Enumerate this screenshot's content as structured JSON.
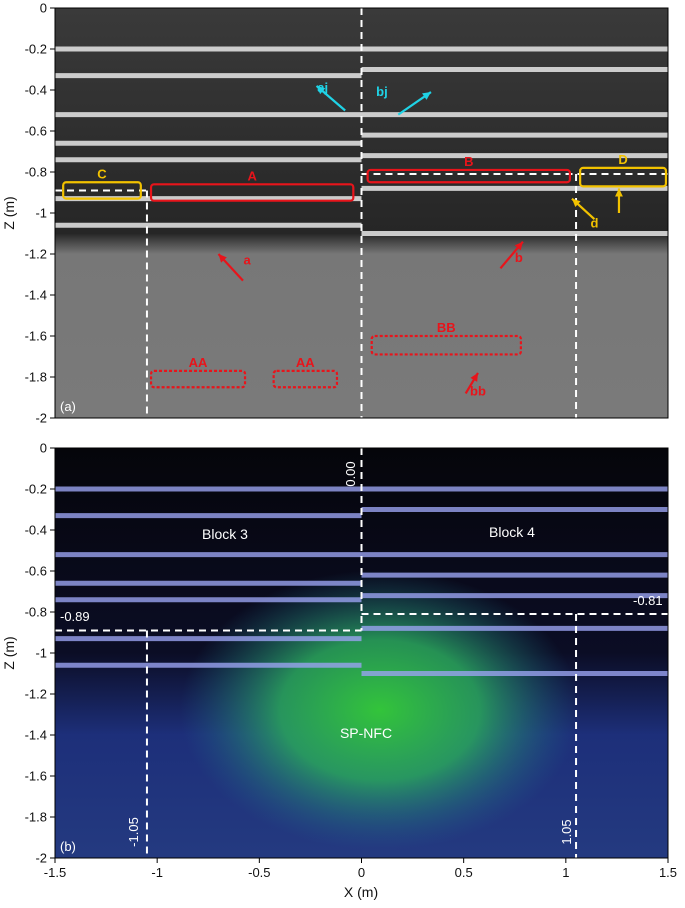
{
  "chart_data": [
    {
      "type": "heatmap",
      "panel_label": "(a)",
      "ylabel": "Z (m)",
      "xlim": [
        -1.5,
        1.5
      ],
      "ylim": [
        -2,
        0
      ],
      "yticks": [
        "0",
        "-0.2",
        "-0.4",
        "-0.6",
        "-0.8",
        "-1",
        "-1.2",
        "-1.4",
        "-1.6",
        "-1.8",
        "-2"
      ],
      "colormap": "grayscale",
      "reflector_bands": [
        {
          "x0": -1.5,
          "x1": 0.0,
          "z": -0.2
        },
        {
          "x0": -1.5,
          "x1": 0.0,
          "z": -0.33
        },
        {
          "x0": -1.5,
          "x1": 0.0,
          "z": -0.52
        },
        {
          "x0": -1.5,
          "x1": 0.0,
          "z": -0.66
        },
        {
          "x0": -1.5,
          "x1": 0.0,
          "z": -0.74
        },
        {
          "x0": -1.5,
          "x1": 0.0,
          "z": -0.93
        },
        {
          "x0": -1.5,
          "x1": 0.0,
          "z": -1.06
        },
        {
          "x0": 0.0,
          "x1": 1.5,
          "z": -0.2
        },
        {
          "x0": 0.0,
          "x1": 1.5,
          "z": -0.3
        },
        {
          "x0": 0.0,
          "x1": 1.5,
          "z": -0.52
        },
        {
          "x0": 0.0,
          "x1": 1.5,
          "z": -0.62
        },
        {
          "x0": 0.0,
          "x1": 1.5,
          "z": -0.72
        },
        {
          "x0": 0.0,
          "x1": 1.5,
          "z": -0.88
        },
        {
          "x0": 0.0,
          "x1": 1.5,
          "z": -1.1
        }
      ],
      "dashed_lines": [
        {
          "x0": 0.0,
          "z0": 0.0,
          "x1": 0.0,
          "z1": -2.0
        },
        {
          "x0": -1.05,
          "z0": -0.89,
          "x1": -1.05,
          "z1": -2.0
        },
        {
          "x0": 1.05,
          "z0": -0.81,
          "x1": 1.05,
          "z1": -2.0
        },
        {
          "x0": -1.5,
          "z0": -0.89,
          "x1": -1.05,
          "z1": -0.89
        },
        {
          "x0": 0.0,
          "z0": -0.81,
          "x1": 1.5,
          "z1": -0.81
        }
      ],
      "boxes": [
        {
          "label": "C",
          "x0": -1.46,
          "x1": -1.08,
          "z0": -0.85,
          "z1": -0.93,
          "color": "#f2c200",
          "style": "solid"
        },
        {
          "label": "A",
          "x0": -1.03,
          "x1": -0.04,
          "z0": -0.86,
          "z1": -0.94,
          "color": "#e8141b",
          "style": "solid"
        },
        {
          "label": "B",
          "x0": 0.03,
          "x1": 1.02,
          "z0": -0.79,
          "z1": -0.85,
          "color": "#e8141b",
          "style": "solid"
        },
        {
          "label": "D",
          "x0": 1.07,
          "x1": 1.49,
          "z0": -0.78,
          "z1": -0.87,
          "color": "#f2c200",
          "style": "solid"
        },
        {
          "label": "AA",
          "x0": -1.03,
          "x1": -0.57,
          "z0": -1.77,
          "z1": -1.85,
          "color": "#e8141b",
          "style": "dashed"
        },
        {
          "label": "AA",
          "x0": -0.43,
          "x1": -0.12,
          "z0": -1.77,
          "z1": -1.85,
          "color": "#e8141b",
          "style": "dashed"
        },
        {
          "label": "BB",
          "x0": 0.05,
          "x1": 0.78,
          "z0": -1.6,
          "z1": -1.69,
          "color": "#e8141b",
          "style": "dashed"
        }
      ],
      "arrows": [
        {
          "label": "aj",
          "color": "#1fd3e6",
          "x0": -0.08,
          "z0": -0.5,
          "x1": -0.22,
          "z1": -0.38
        },
        {
          "label": "bj",
          "color": "#1fd3e6",
          "x0": 0.18,
          "z0": -0.52,
          "x1": 0.34,
          "z1": -0.41
        },
        {
          "label": "a",
          "color": "#e8141b",
          "x0": -0.58,
          "z0": -1.33,
          "x1": -0.7,
          "z1": -1.2
        },
        {
          "label": "b",
          "color": "#e8141b",
          "x0": 0.68,
          "z0": -1.27,
          "x1": 0.79,
          "z1": -1.14
        },
        {
          "label": "d",
          "color": "#f2c200",
          "x0": 1.14,
          "z0": -1.03,
          "x1": 1.03,
          "z1": -0.93
        },
        {
          "label": "",
          "color": "#f2c200",
          "x0": 1.26,
          "z0": -1.0,
          "x1": 1.26,
          "z1": -0.88
        },
        {
          "label": "bb",
          "color": "#e8141b",
          "x0": 0.51,
          "z0": -1.88,
          "x1": 0.57,
          "z1": -1.78
        }
      ],
      "arrow_labels": [
        {
          "text": "aj",
          "x": -0.19,
          "z": -0.41,
          "color": "#1fd3e6"
        },
        {
          "text": "bj",
          "x": 0.1,
          "z": -0.43,
          "color": "#1fd3e6"
        },
        {
          "text": "a",
          "x": -0.56,
          "z": -1.25,
          "color": "#e8141b"
        },
        {
          "text": "b",
          "x": 0.77,
          "z": -1.24,
          "color": "#e8141b"
        },
        {
          "text": "d",
          "x": 1.14,
          "z": -1.07,
          "color": "#f2c200"
        },
        {
          "text": "bb",
          "x": 0.57,
          "z": -1.89,
          "color": "#e8141b"
        }
      ]
    },
    {
      "type": "heatmap",
      "panel_label": "(b)",
      "xlabel": "X (m)",
      "ylabel": "Z (m)",
      "xlim": [
        -1.5,
        1.5
      ],
      "ylim": [
        -2,
        0
      ],
      "xticks": [
        "-1.5",
        "-1",
        "-0.5",
        "0",
        "0.5",
        "1",
        "1.5"
      ],
      "yticks": [
        "0",
        "-0.2",
        "-0.4",
        "-0.6",
        "-0.8",
        "-1",
        "-1.2",
        "-1.4",
        "-1.6",
        "-1.8",
        "-2"
      ],
      "colormap": "black-blue-cyan-green",
      "regions": {
        "block3": "Block 3",
        "block4": "Block 4",
        "sp_nfc": "SP-NFC"
      },
      "dashed_lines": [
        {
          "x0": 0.0,
          "z0": 0.0,
          "x1": 0.0,
          "z1": -0.89
        },
        {
          "x0": -1.5,
          "z0": -0.89,
          "x1": 0.0,
          "z1": -0.89
        },
        {
          "x0": 0.0,
          "z0": -0.81,
          "x1": 1.5,
          "z1": -0.81
        },
        {
          "x0": -1.05,
          "z0": -0.89,
          "x1": -1.05,
          "z1": -2.0
        },
        {
          "x0": 1.05,
          "z0": -0.81,
          "x1": 1.05,
          "z1": -2.0
        }
      ],
      "value_labels": {
        "center": "0.00",
        "left_level": "-0.89",
        "right_level": "-0.81",
        "left_edge": "-1.05",
        "right_edge": "1.05"
      }
    }
  ]
}
